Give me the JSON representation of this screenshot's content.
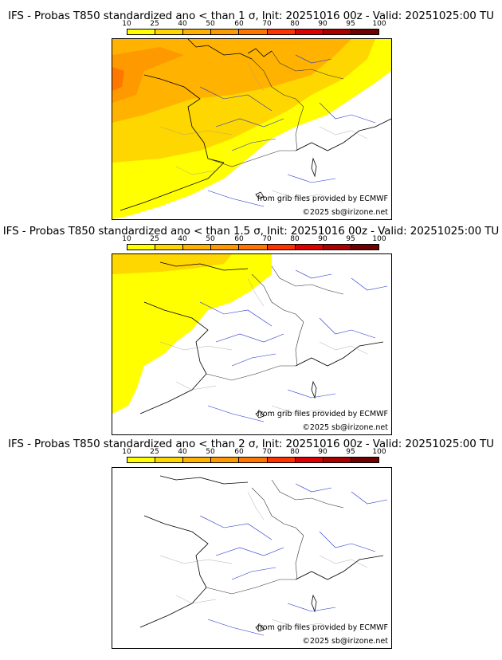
{
  "panels": [
    {
      "title": "IFS - Probas T850  standardized ano < than 1 σ, Init: 20251016 00z - Valid: 20251025:00 TU"
    },
    {
      "title": "IFS - Probas T850  standardized ano < than 1.5 σ, Init: 20251016 00z - Valid: 20251025:00 TU"
    },
    {
      "title": "IFS - Probas T850  standardized ano < than 2 σ, Init: 20251016 00z - Valid: 20251025:00 TU"
    }
  ],
  "colorbar": {
    "ticks": [
      "10",
      "25",
      "40",
      "50",
      "60",
      "70",
      "80",
      "90",
      "95",
      "100"
    ],
    "colors": [
      "#ffff00",
      "#ffd700",
      "#ffb300",
      "#ff9900",
      "#ff7700",
      "#ff3300",
      "#dd0000",
      "#aa0000",
      "#700000"
    ]
  },
  "credits": {
    "source": "from grib files provided by ECMWF",
    "copyright": "©2025 sb@irizone.net"
  }
}
